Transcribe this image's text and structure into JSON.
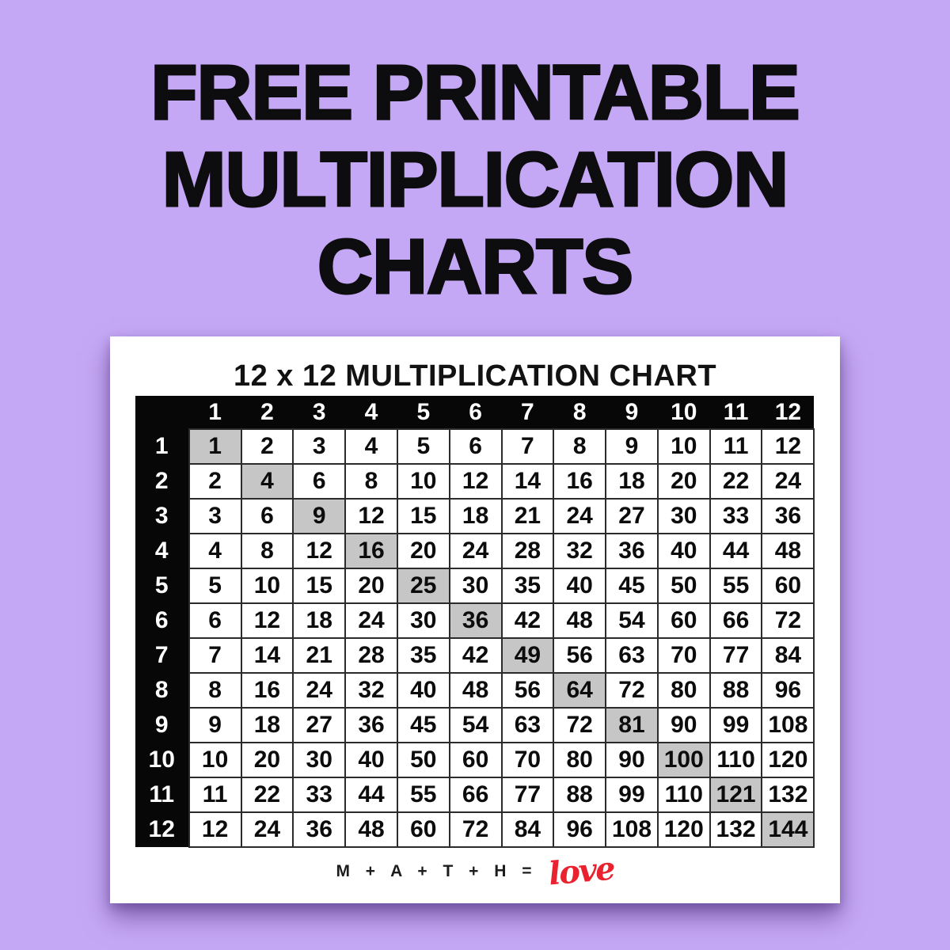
{
  "page": {
    "background_color": "#c5a8f5",
    "title_lines": [
      "FREE PRINTABLE",
      "MULTIPLICATION",
      "CHARTS"
    ],
    "title_color": "#0d0d0f"
  },
  "card": {
    "title": "12 x 12 MULTIPLICATION CHART",
    "footer": {
      "equation_text": "M + A + T + H =",
      "accent_word": "love",
      "accent_color": "#e8232f"
    },
    "table": {
      "header_bg": "#070707",
      "header_text_color": "#ffffff",
      "diagonal_highlight_color": "#c6c6c6",
      "column_headers": [
        "1",
        "2",
        "3",
        "4",
        "5",
        "6",
        "7",
        "8",
        "9",
        "10",
        "11",
        "12"
      ],
      "row_headers": [
        "1",
        "2",
        "3",
        "4",
        "5",
        "6",
        "7",
        "8",
        "9",
        "10",
        "11",
        "12"
      ],
      "rows": [
        [
          1,
          2,
          3,
          4,
          5,
          6,
          7,
          8,
          9,
          10,
          11,
          12
        ],
        [
          2,
          4,
          6,
          8,
          10,
          12,
          14,
          16,
          18,
          20,
          22,
          24
        ],
        [
          3,
          6,
          9,
          12,
          15,
          18,
          21,
          24,
          27,
          30,
          33,
          36
        ],
        [
          4,
          8,
          12,
          16,
          20,
          24,
          28,
          32,
          36,
          40,
          44,
          48
        ],
        [
          5,
          10,
          15,
          20,
          25,
          30,
          35,
          40,
          45,
          50,
          55,
          60
        ],
        [
          6,
          12,
          18,
          24,
          30,
          36,
          42,
          48,
          54,
          60,
          66,
          72
        ],
        [
          7,
          14,
          21,
          28,
          35,
          42,
          49,
          56,
          63,
          70,
          77,
          84
        ],
        [
          8,
          16,
          24,
          32,
          40,
          48,
          56,
          64,
          72,
          80,
          88,
          96
        ],
        [
          9,
          18,
          27,
          36,
          45,
          54,
          63,
          72,
          81,
          90,
          99,
          108
        ],
        [
          10,
          20,
          30,
          40,
          50,
          60,
          70,
          80,
          90,
          100,
          110,
          120
        ],
        [
          11,
          22,
          33,
          44,
          55,
          66,
          77,
          88,
          99,
          110,
          121,
          132
        ],
        [
          12,
          24,
          36,
          48,
          60,
          72,
          84,
          96,
          108,
          120,
          132,
          144
        ]
      ]
    }
  }
}
